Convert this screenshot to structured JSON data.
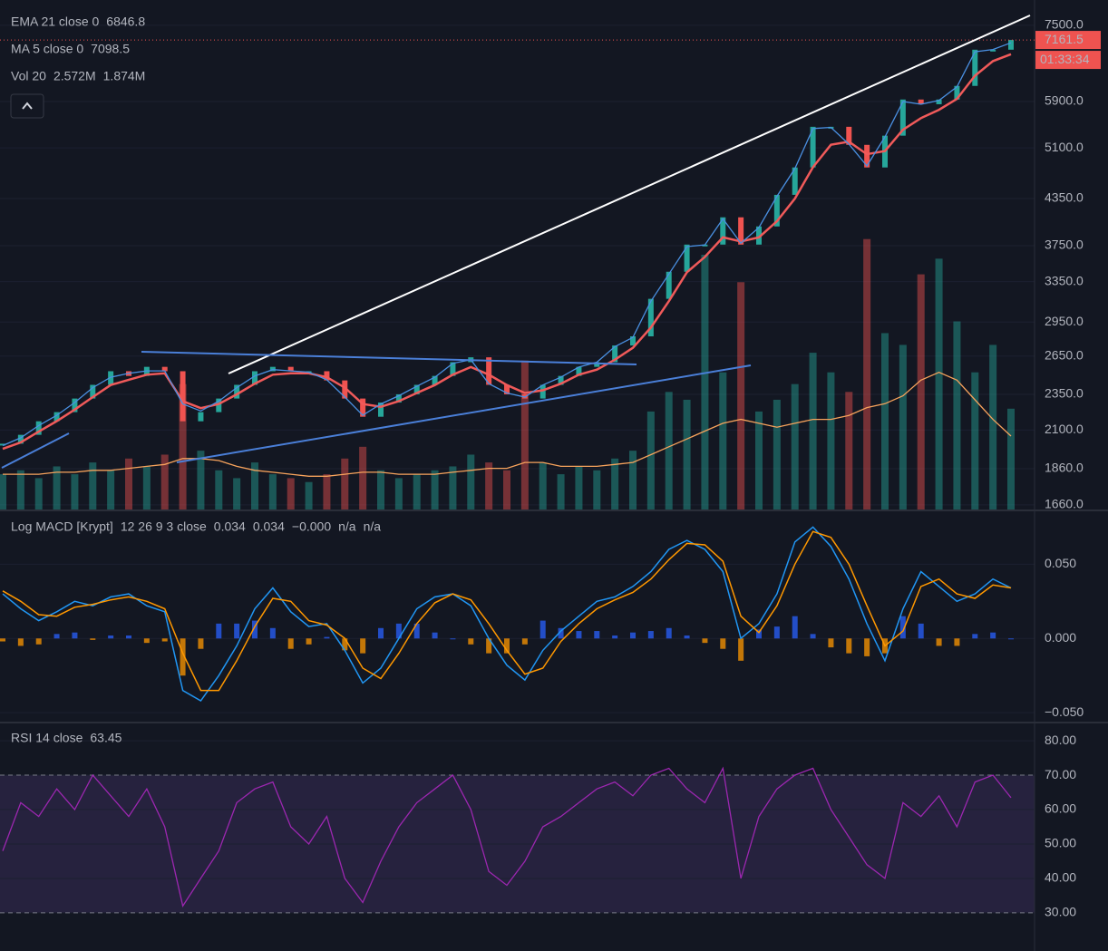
{
  "chart_data": [
    {
      "type": "candlestick",
      "log_scale": true,
      "grid": true,
      "ylim": [
        1636,
        8120
      ],
      "yticks": [
        {
          "value": 1660,
          "label": "1660.0"
        },
        {
          "value": 1860,
          "label": "1860.0"
        },
        {
          "value": 2100,
          "label": "2100.0"
        },
        {
          "value": 2350,
          "label": "2350.0"
        },
        {
          "value": 2650,
          "label": "2650.0"
        },
        {
          "value": 2950,
          "label": "2950.0"
        },
        {
          "value": 3350,
          "label": "3350.0"
        },
        {
          "value": 3750,
          "label": "3750.0"
        },
        {
          "value": 4350,
          "label": "4350.0"
        },
        {
          "value": 5100,
          "label": "5100.0"
        },
        {
          "value": 5900,
          "label": "5900.0"
        },
        {
          "value": 7500,
          "label": "7500.0"
        }
      ],
      "up_color": "#26a69a",
      "down_color": "#ef5350",
      "values": [
        2012,
        2069,
        2159,
        2222,
        2319,
        2421,
        2527,
        2490,
        2562,
        2527,
        2159,
        2222,
        2319,
        2421,
        2527,
        2562,
        2527,
        2527,
        2455,
        2319,
        2190,
        2290,
        2350,
        2421,
        2490,
        2600,
        2640,
        2421,
        2350,
        2319,
        2421,
        2490,
        2562,
        2600,
        2740,
        2820,
        3173,
        3455,
        3763,
        3763,
        4100,
        3763,
        3984,
        4400,
        4796,
        5450,
        5450,
        5149,
        4796,
        5300,
        5938,
        5851,
        5938,
        6198,
        6945,
        6945,
        7161.5
      ],
      "last_price_label": "7161.5",
      "countdown": "01:33:34",
      "overlays": [
        {
          "name": "EMA 21 close 0",
          "readout": "6846.8",
          "color": "#f05a5a",
          "values": [
            1980,
            2020,
            2090,
            2160,
            2240,
            2330,
            2420,
            2460,
            2500,
            2510,
            2300,
            2250,
            2280,
            2350,
            2430,
            2500,
            2510,
            2510,
            2480,
            2400,
            2280,
            2260,
            2300,
            2360,
            2420,
            2500,
            2560,
            2500,
            2420,
            2360,
            2380,
            2430,
            2500,
            2540,
            2620,
            2720,
            2900,
            3150,
            3450,
            3620,
            3850,
            3800,
            3850,
            4050,
            4350,
            4800,
            5150,
            5200,
            5000,
            5050,
            5400,
            5600,
            5750,
            5950,
            6400,
            6700,
            6846.8
          ]
        },
        {
          "name": "MA 5 close 0",
          "readout": "7098.5",
          "color": "#4a90e2",
          "values": [
            2000,
            2050,
            2130,
            2200,
            2290,
            2400,
            2480,
            2510,
            2530,
            2530,
            2280,
            2230,
            2300,
            2400,
            2490,
            2540,
            2530,
            2520,
            2460,
            2330,
            2200,
            2280,
            2340,
            2410,
            2480,
            2590,
            2620,
            2430,
            2360,
            2330,
            2420,
            2480,
            2560,
            2600,
            2730,
            2810,
            3150,
            3430,
            3740,
            3760,
            4080,
            3780,
            3970,
            4380,
            4780,
            5420,
            5440,
            5160,
            4820,
            5280,
            5900,
            5850,
            5920,
            6180,
            6900,
            6950,
            7098.5
          ]
        }
      ],
      "volume": {
        "name": "Vol 20",
        "readouts": [
          "2.572M",
          "1.874M"
        ],
        "ylim": [
          0,
          13
        ],
        "ma_color": "#f7a35c",
        "values": [
          0.9,
          1.0,
          0.8,
          1.1,
          0.9,
          1.2,
          1.0,
          1.3,
          1.1,
          1.4,
          3.2,
          1.5,
          1.0,
          0.8,
          1.2,
          0.9,
          0.8,
          0.7,
          0.9,
          1.3,
          1.6,
          1.0,
          0.8,
          0.9,
          1.0,
          1.1,
          1.4,
          1.2,
          1.0,
          3.8,
          1.2,
          0.9,
          1.1,
          1.0,
          1.3,
          1.5,
          2.5,
          3.0,
          2.8,
          6.5,
          3.5,
          5.8,
          2.5,
          2.8,
          3.2,
          4.0,
          3.5,
          3.0,
          6.9,
          4.5,
          4.2,
          6.0,
          6.4,
          4.8,
          3.5,
          4.2,
          2.572
        ],
        "ma_values": [
          0.9,
          0.9,
          0.9,
          0.95,
          0.95,
          1.0,
          1.0,
          1.05,
          1.1,
          1.15,
          1.3,
          1.3,
          1.25,
          1.1,
          1.0,
          0.95,
          0.9,
          0.85,
          0.85,
          0.9,
          0.95,
          0.95,
          0.9,
          0.9,
          0.9,
          0.95,
          1.0,
          1.05,
          1.05,
          1.2,
          1.2,
          1.1,
          1.1,
          1.1,
          1.15,
          1.2,
          1.4,
          1.6,
          1.8,
          2.0,
          2.2,
          2.3,
          2.2,
          2.1,
          2.2,
          2.3,
          2.3,
          2.4,
          2.6,
          2.7,
          2.9,
          3.3,
          3.5,
          3.3,
          2.8,
          2.3,
          1.874
        ]
      }
    },
    {
      "type": "macd",
      "name": "Log MACD [Krypt]",
      "params": "12 26 9 3 close",
      "readouts": [
        {
          "label": "0.034",
          "color": "#2196f3"
        },
        {
          "label": "0.034",
          "color": "#ff9800"
        },
        {
          "label": "−0.000",
          "color": "#ff9800"
        },
        {
          "label": "n/a",
          "color": "#b2b5be"
        },
        {
          "label": "n/a",
          "color": "#b2b5be"
        }
      ],
      "ylim": [
        -0.0554,
        0.085
      ],
      "yticks": [
        {
          "value": -0.05,
          "label": "−0.050"
        },
        {
          "value": 0,
          "label": "0.000"
        },
        {
          "value": 0.05,
          "label": "0.050"
        }
      ],
      "series": [
        {
          "color": "#2196f3",
          "values": [
            0.03,
            0.02,
            0.012,
            0.018,
            0.025,
            0.022,
            0.028,
            0.03,
            0.022,
            0.018,
            -0.035,
            -0.042,
            -0.025,
            -0.005,
            0.02,
            0.034,
            0.018,
            0.008,
            0.01,
            -0.008,
            -0.03,
            -0.02,
            0.0,
            0.02,
            0.028,
            0.03,
            0.022,
            0.0,
            -0.018,
            -0.028,
            -0.008,
            0.005,
            0.015,
            0.025,
            0.028,
            0.035,
            0.045,
            0.06,
            0.066,
            0.06,
            0.045,
            0.0,
            0.01,
            0.03,
            0.065,
            0.075,
            0.062,
            0.04,
            0.01,
            -0.015,
            0.02,
            0.045,
            0.035,
            0.025,
            0.03,
            0.04,
            0.034
          ]
        },
        {
          "color": "#ff9800",
          "values": [
            0.032,
            0.025,
            0.016,
            0.015,
            0.021,
            0.023,
            0.026,
            0.028,
            0.025,
            0.02,
            -0.01,
            -0.035,
            -0.035,
            -0.015,
            0.008,
            0.027,
            0.025,
            0.012,
            0.009,
            0.0,
            -0.02,
            -0.027,
            -0.01,
            0.01,
            0.024,
            0.03,
            0.026,
            0.01,
            -0.008,
            -0.024,
            -0.02,
            -0.002,
            0.01,
            0.02,
            0.026,
            0.031,
            0.04,
            0.053,
            0.064,
            0.063,
            0.052,
            0.015,
            0.004,
            0.022,
            0.05,
            0.072,
            0.068,
            0.05,
            0.022,
            -0.005,
            0.005,
            0.035,
            0.04,
            0.03,
            0.027,
            0.036,
            0.034
          ]
        }
      ],
      "histogram": {
        "up_color": "#2962ff",
        "down_color": "#ff9800",
        "values": [
          -0.002,
          -0.005,
          -0.004,
          0.003,
          0.004,
          -0.001,
          0.002,
          0.002,
          -0.003,
          -0.002,
          -0.025,
          -0.007,
          0.01,
          0.01,
          0.012,
          0.007,
          -0.007,
          -0.004,
          0.001,
          -0.008,
          -0.01,
          0.007,
          0.01,
          0.01,
          0.004,
          0.0,
          -0.004,
          -0.01,
          -0.01,
          -0.004,
          0.012,
          0.007,
          0.005,
          0.005,
          0.002,
          0.004,
          0.005,
          0.007,
          0.002,
          -0.003,
          -0.007,
          -0.015,
          0.006,
          0.008,
          0.015,
          0.003,
          -0.006,
          -0.01,
          -0.012,
          -0.01,
          0.015,
          0.01,
          -0.005,
          -0.005,
          0.003,
          0.004,
          0.0
        ]
      }
    },
    {
      "type": "rsi",
      "name": "RSI 14 close",
      "readout": "63.45",
      "color": "#9c27b0",
      "ylim": [
        22.6,
        84.5
      ],
      "yticks": [
        {
          "value": 30,
          "label": "30.00"
        },
        {
          "value": 40,
          "label": "40.00"
        },
        {
          "value": 50,
          "label": "50.00"
        },
        {
          "value": 60,
          "label": "60.00"
        },
        {
          "value": 70,
          "label": "70.00"
        },
        {
          "value": 80,
          "label": "80.00"
        }
      ],
      "band": [
        30,
        70
      ],
      "values": [
        48,
        62,
        58,
        66,
        60,
        70,
        64,
        58,
        66,
        55,
        32,
        40,
        48,
        62,
        66,
        68,
        55,
        50,
        58,
        40,
        33,
        45,
        55,
        62,
        66,
        70,
        60,
        42,
        38,
        45,
        55,
        58,
        62,
        66,
        68,
        64,
        70,
        72,
        66,
        62,
        72,
        40,
        58,
        66,
        70,
        72,
        60,
        52,
        44,
        40,
        62,
        58,
        64,
        55,
        68,
        70,
        63.45
      ]
    }
  ]
}
